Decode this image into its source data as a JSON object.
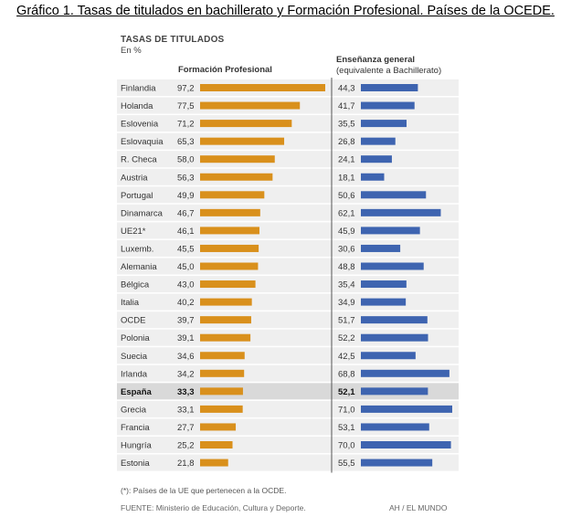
{
  "figure_title": "Gráfico 1. Tasas de titulados en bachillerato y Formación Profesional. Países de la OCEDE.",
  "chart_data": {
    "type": "bar",
    "orientation": "horizontal",
    "title": "TASAS DE TITULADOS",
    "unit": "En %",
    "categories": [
      "Finlandia",
      "Holanda",
      "Eslovenia",
      "Eslovaquia",
      "R. Checa",
      "Austria",
      "Portugal",
      "Dinamarca",
      "UE21*",
      "Luxemb.",
      "Alemania",
      "Bélgica",
      "Italia",
      "OCDE",
      "Polonia",
      "Suecia",
      "Irlanda",
      "España",
      "Grecia",
      "Francia",
      "Hungría",
      "Estonia"
    ],
    "highlighted_category": "España",
    "series": [
      {
        "name": "Formación Profesional",
        "subtitle": "",
        "color": "#d9901c",
        "values": [
          97.2,
          77.5,
          71.2,
          65.3,
          58.0,
          56.3,
          49.9,
          46.7,
          46.1,
          45.5,
          45.0,
          43.0,
          40.2,
          39.7,
          39.1,
          34.6,
          34.2,
          33.3,
          33.1,
          27.7,
          25.2,
          21.8
        ],
        "labels": [
          "97,2",
          "77,5",
          "71,2",
          "65,3",
          "58,0",
          "56,3",
          "49,9",
          "46,7",
          "46,1",
          "45,5",
          "45,0",
          "43,0",
          "40,2",
          "39,7",
          "39,1",
          "34,6",
          "34,2",
          "33,3",
          "33,1",
          "27,7",
          "25,2",
          "21,8"
        ]
      },
      {
        "name": "Enseñanza general",
        "subtitle": "(equivalente a Bachillerato)",
        "color": "#3e64b0",
        "values": [
          44.3,
          41.7,
          35.5,
          26.8,
          24.1,
          18.1,
          50.6,
          62.1,
          45.9,
          30.6,
          48.8,
          35.4,
          34.9,
          51.7,
          52.2,
          42.5,
          68.8,
          52.1,
          71.0,
          53.1,
          70.0,
          55.5
        ],
        "labels": [
          "44,3",
          "41,7",
          "35,5",
          "26,8",
          "24,1",
          "18,1",
          "50,6",
          "62,1",
          "45,9",
          "30,6",
          "48,8",
          "35,4",
          "34,9",
          "51,7",
          "52,2",
          "42,5",
          "68,8",
          "52,1",
          "71,0",
          "53,1",
          "70,0",
          "55,5"
        ]
      }
    ],
    "row_background": "#efefef",
    "highlight_background": "#d9d9d9"
  },
  "footnote": "(*): Países de la UE que pertenecen a la OCDE.",
  "source": "FUENTE: Ministerio de Educación, Cultura y Deporte.",
  "credit": "AH / EL MUNDO"
}
